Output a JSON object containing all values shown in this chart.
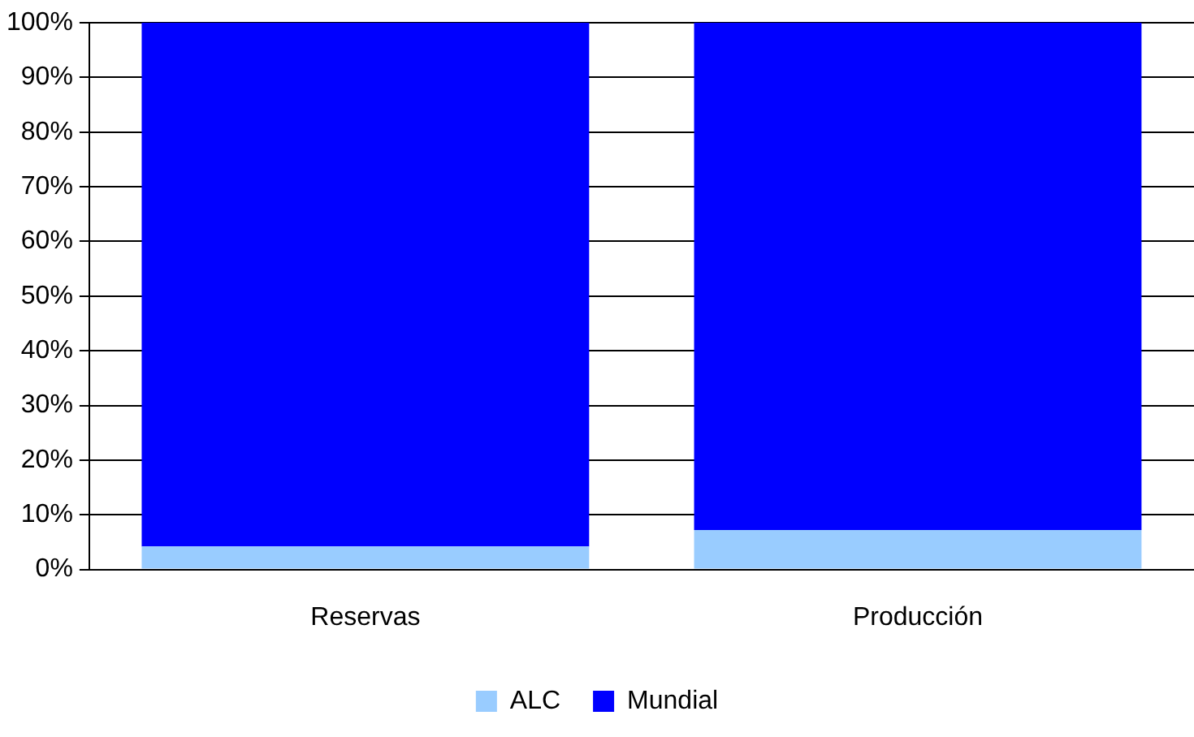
{
  "chart_data": {
    "type": "bar",
    "stacked": true,
    "categories": [
      "Reservas",
      "Producción"
    ],
    "series": [
      {
        "name": "ALC",
        "color": "#99ccff",
        "values": [
          4.2,
          7.2
        ]
      },
      {
        "name": "Mundial",
        "color": "#0000ff",
        "values": [
          95.8,
          92.8
        ]
      }
    ],
    "ylim": [
      0,
      100
    ],
    "yticks": [
      {
        "value": 0,
        "label": "0%"
      },
      {
        "value": 10,
        "label": "10%"
      },
      {
        "value": 20,
        "label": "20%"
      },
      {
        "value": 30,
        "label": "30%"
      },
      {
        "value": 40,
        "label": "40%"
      },
      {
        "value": 50,
        "label": "50%"
      },
      {
        "value": 60,
        "label": "60%"
      },
      {
        "value": 70,
        "label": "70%"
      },
      {
        "value": 80,
        "label": "80%"
      },
      {
        "value": 90,
        "label": "90%"
      },
      {
        "value": 100,
        "label": "100%"
      }
    ],
    "grid": "y",
    "legend": "bottom"
  }
}
